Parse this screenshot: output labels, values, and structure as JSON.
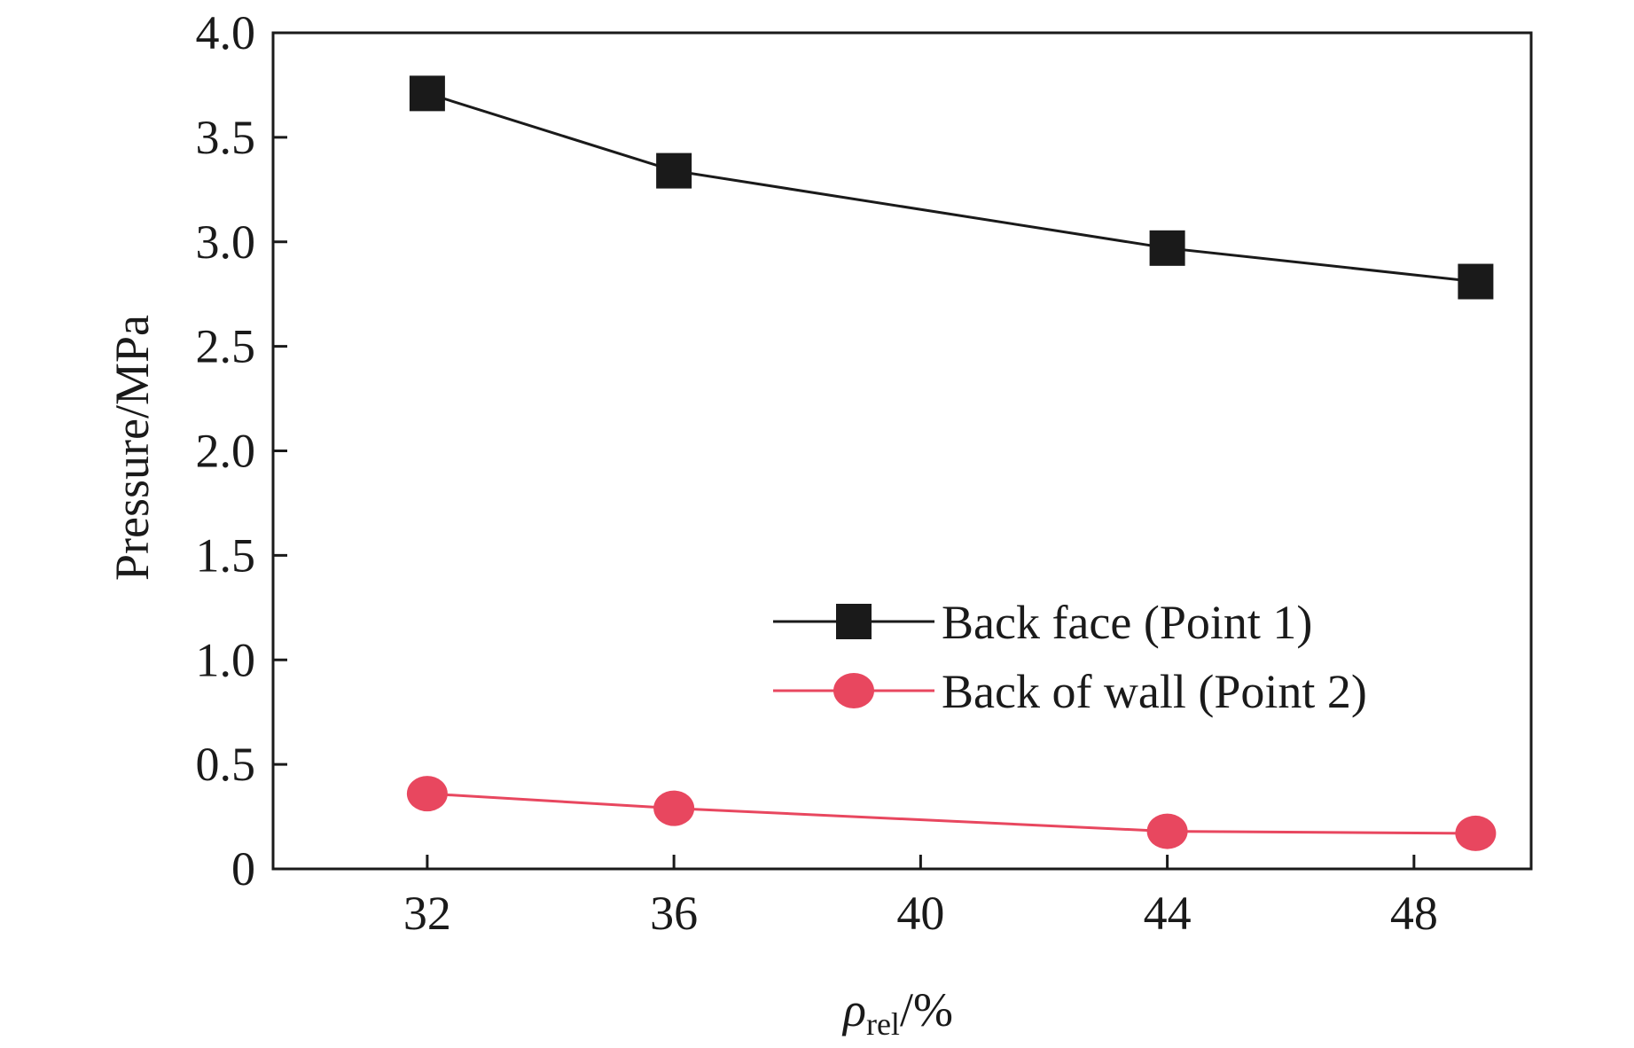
{
  "chart_data": {
    "type": "line",
    "title": "",
    "xlabel": {
      "symbol": "ρ",
      "subscript": "rel",
      "unit": "/%"
    },
    "ylabel": "Pressure/MPa",
    "xlim": [
      29.5,
      49.9
    ],
    "ylim": [
      0,
      4.0
    ],
    "x_ticks": [
      32,
      36,
      40,
      44,
      48
    ],
    "x_tick_labels": [
      "32",
      "36",
      "40",
      "44",
      "48"
    ],
    "y_ticks": [
      0,
      0.5,
      1.0,
      1.5,
      2.0,
      2.5,
      3.0,
      3.5,
      4.0
    ],
    "y_tick_labels": [
      "0",
      "0.5",
      "1.0",
      "1.5",
      "2.0",
      "2.5",
      "3.0",
      "3.5",
      "4.0"
    ],
    "grid": false,
    "legend_position": "right, lower-middle",
    "series": [
      {
        "name": "Back face (Point 1)",
        "marker": "square",
        "color": "#1a1a1a",
        "x": [
          32,
          36,
          44,
          49
        ],
        "y": [
          3.71,
          3.34,
          2.97,
          2.81
        ]
      },
      {
        "name": "Back of wall (Point 2)",
        "marker": "circle",
        "color": "#e8475f",
        "x": [
          32,
          36,
          44,
          49
        ],
        "y": [
          0.36,
          0.29,
          0.18,
          0.17
        ]
      }
    ]
  }
}
